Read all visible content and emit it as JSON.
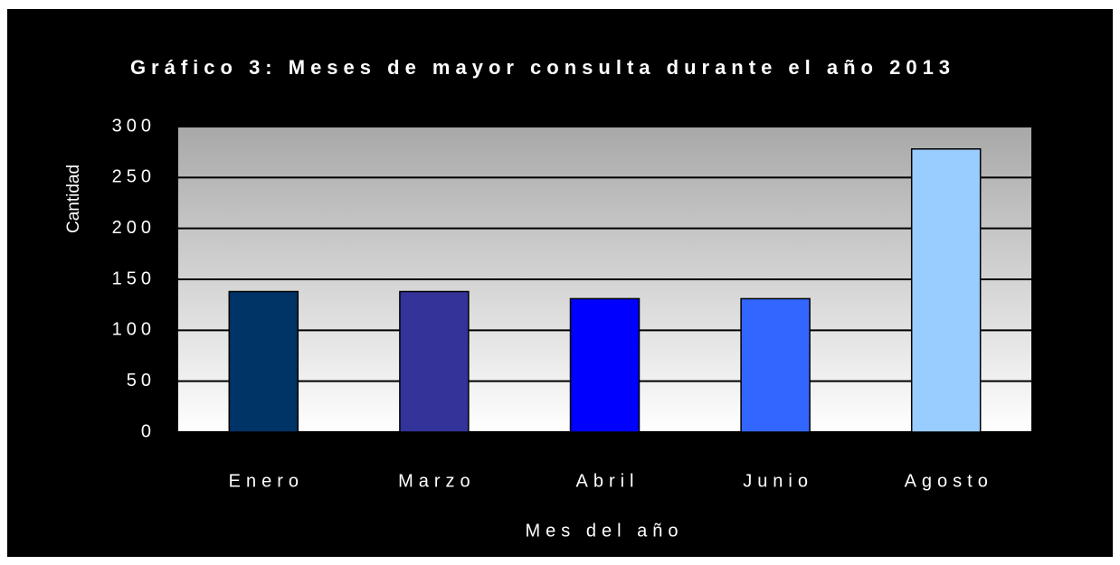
{
  "chart_data": {
    "type": "bar",
    "title": "Gráfico 3: Meses de mayor consulta  durante el año 2013",
    "x_label": "Mes del año",
    "y_label": "Cantidad",
    "categories": [
      "Enero",
      "Marzo",
      "Abril",
      "Junio",
      "Agosto"
    ],
    "values": [
      138,
      138,
      131,
      131,
      278
    ],
    "colors": [
      "#003366",
      "#333399",
      "#0000ff",
      "#3366ff",
      "#99ccff"
    ],
    "ylim": [
      0,
      300
    ],
    "yticks": [
      0,
      50,
      100,
      150,
      200,
      250,
      300
    ],
    "grid": true
  }
}
